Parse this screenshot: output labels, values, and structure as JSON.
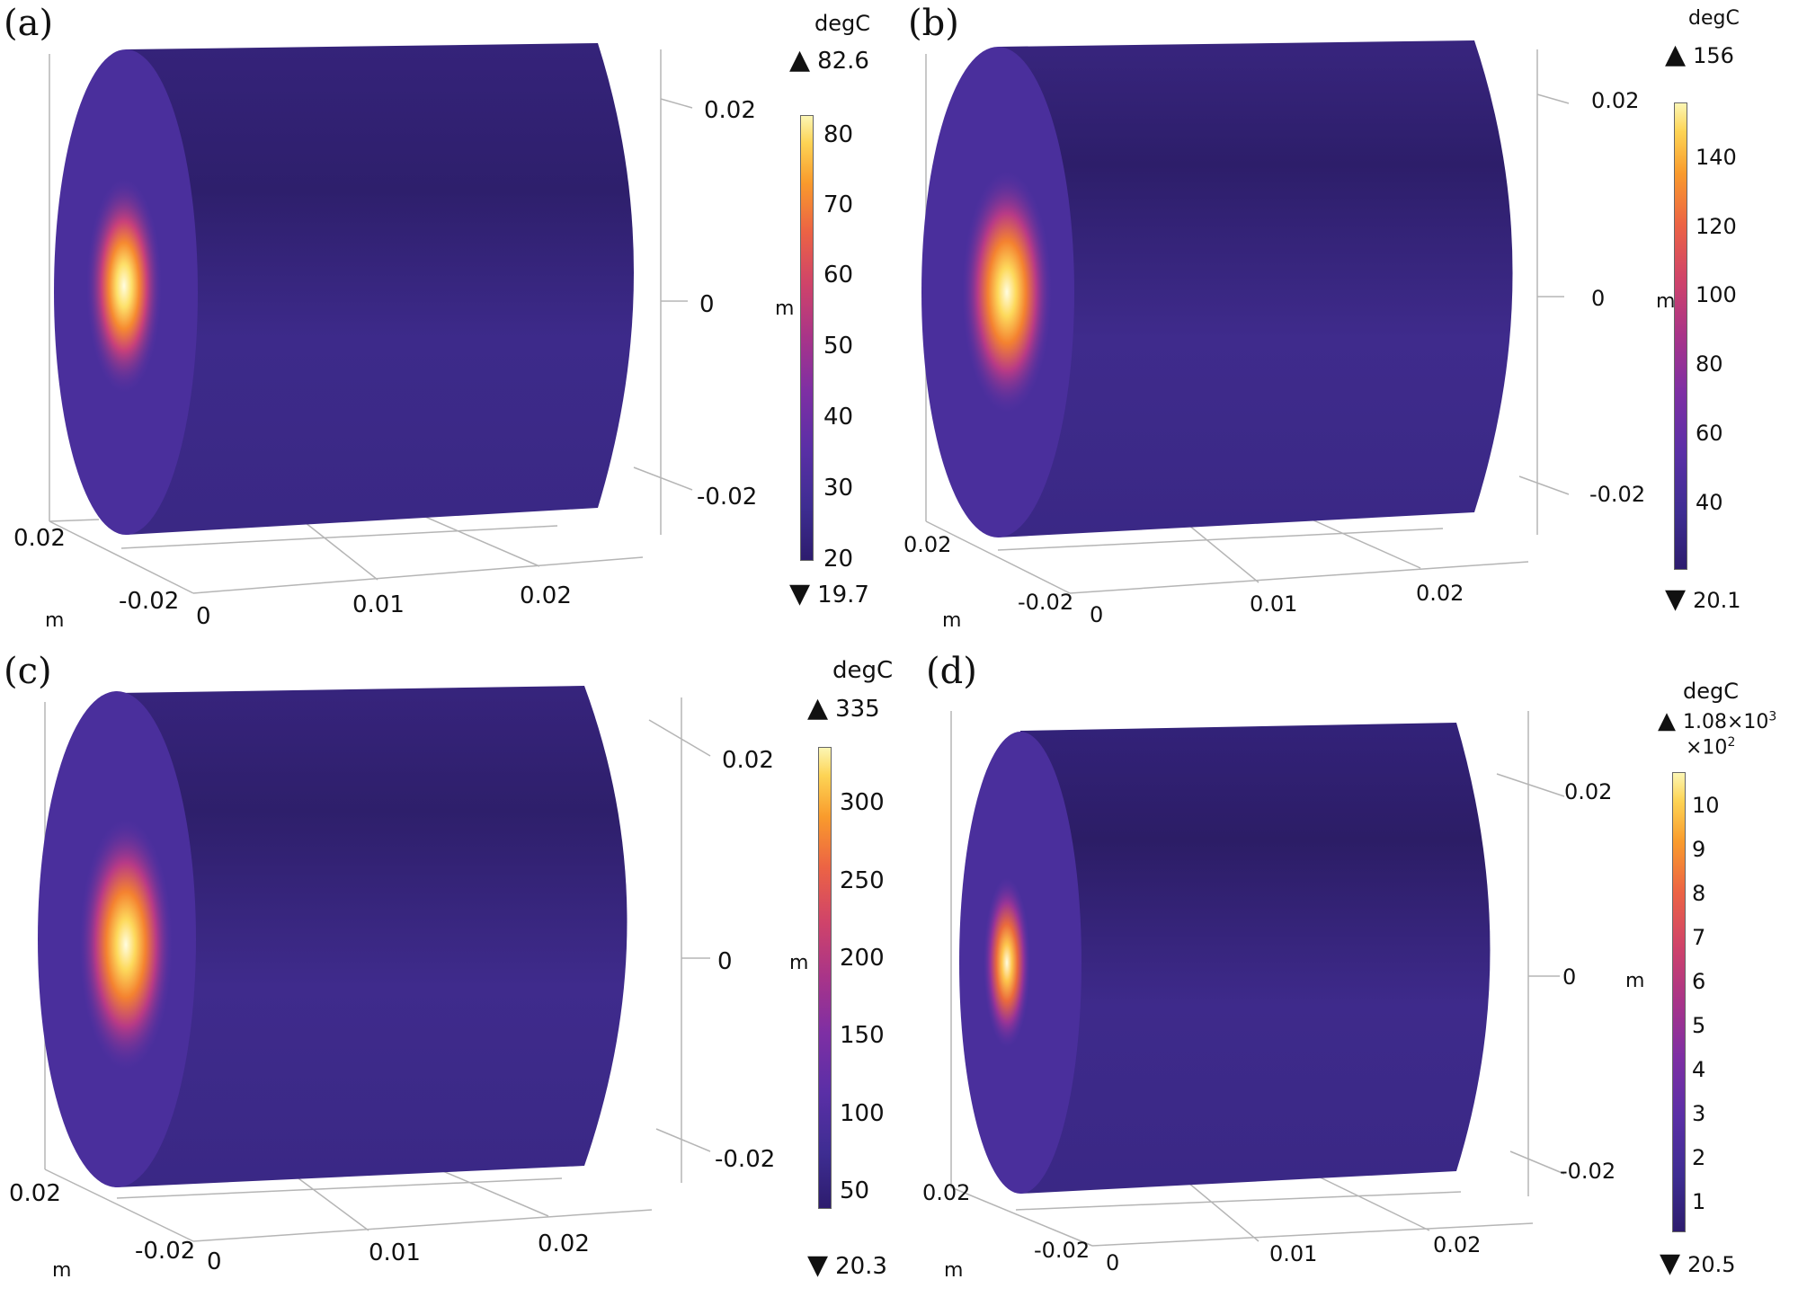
{
  "figure": {
    "panels": [
      {
        "label": "(a)",
        "unit": "degC",
        "max_value": "82.6",
        "min_value": "19.7",
        "colorbar_ticks": [
          "80",
          "70",
          "60",
          "50",
          "40",
          "30",
          "20"
        ],
        "colorbar_axis_label": "m",
        "axis_ticks": {
          "z_top": "0.02",
          "z_mid": "0",
          "z_bottom": "-0.02",
          "y_left": "0.02",
          "y_right": "-0.02",
          "x_0": "0",
          "x_1": "0.01",
          "x_2": "0.02",
          "axis_unit": "m"
        }
      },
      {
        "label": "(b)",
        "unit": "degC",
        "max_value": "156",
        "min_value": "20.1",
        "colorbar_ticks": [
          "140",
          "120",
          "100",
          "80",
          "60",
          "40"
        ],
        "colorbar_axis_label": "m",
        "axis_ticks": {
          "z_top": "0.02",
          "z_mid": "0",
          "z_bottom": "-0.02",
          "y_left": "0.02",
          "y_right": "-0.02",
          "x_0": "0",
          "x_1": "0.01",
          "x_2": "0.02",
          "axis_unit": "m"
        }
      },
      {
        "label": "(c)",
        "unit": "degC",
        "max_value": "335",
        "min_value": "20.3",
        "colorbar_ticks": [
          "300",
          "250",
          "200",
          "150",
          "100",
          "50"
        ],
        "colorbar_axis_label": "m",
        "axis_ticks": {
          "z_top": "0.02",
          "z_mid": "0",
          "z_bottom": "-0.02",
          "y_left": "0.02",
          "y_right": "-0.02",
          "x_0": "0",
          "x_1": "0.01",
          "x_2": "0.02",
          "axis_unit": "m"
        }
      },
      {
        "label": "(d)",
        "unit": "degC",
        "max_value": "1.08×10",
        "max_exponent": "3",
        "scale_base": "×10",
        "scale_exponent": "2",
        "min_value": "20.5",
        "colorbar_ticks": [
          "10",
          "9",
          "8",
          "7",
          "6",
          "5",
          "4",
          "3",
          "2",
          "1"
        ],
        "colorbar_axis_label": "m",
        "axis_ticks": {
          "z_top": "0.02",
          "z_mid": "0",
          "z_bottom": "-0.02",
          "y_left": "0.02",
          "y_right": "-0.02",
          "x_0": "0",
          "x_1": "0.01",
          "x_2": "0.02",
          "axis_unit": "m"
        }
      }
    ],
    "colors": {
      "cylinder_body": "#3f2a8c",
      "cylinder_dark": "#2c1d66",
      "end_cap": "#4e30a0",
      "hotspot_core": "#fffde0",
      "hotspot_mid": "#fcb52c",
      "hotspot_outer": "#e0485a",
      "axis_line": "#b5b5b5"
    }
  }
}
